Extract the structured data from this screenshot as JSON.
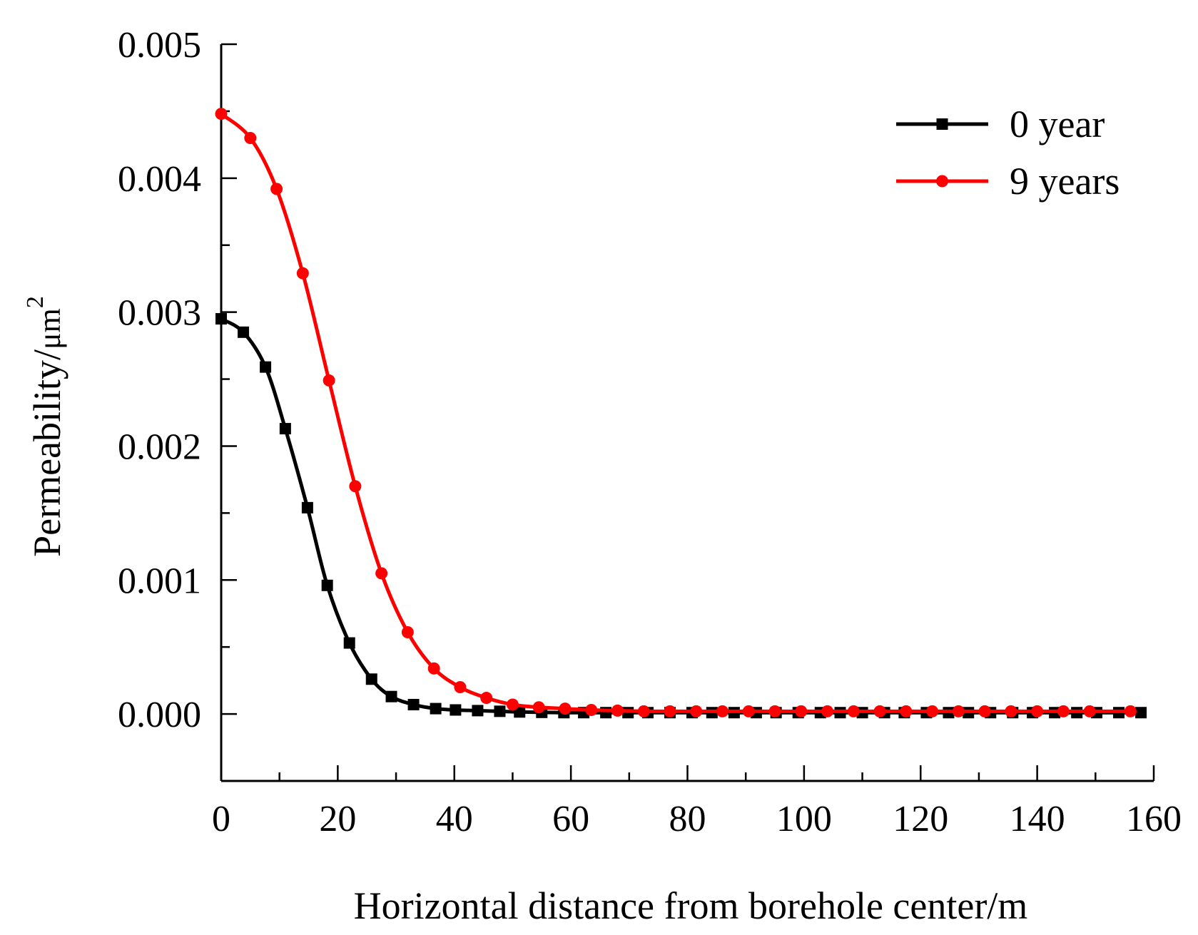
{
  "chart_data": {
    "type": "line",
    "title": "",
    "xlabel": "Horizontal distance from borehole center/m",
    "ylabel_main": "Permeability/",
    "ylabel_unit": "μm",
    "ylabel_sup": "2",
    "xlim": [
      0,
      160
    ],
    "ylim": [
      -0.0005,
      0.005
    ],
    "xticks": [
      0,
      20,
      40,
      60,
      80,
      100,
      120,
      140,
      160
    ],
    "xtick_labels": [
      "0",
      "20",
      "40",
      "60",
      "80",
      "100",
      "120",
      "140",
      "160"
    ],
    "yticks": [
      0,
      0.001,
      0.002,
      0.003,
      0.004,
      0.005
    ],
    "ytick_labels": [
      "0.000",
      "0.001",
      "0.002",
      "0.003",
      "0.004",
      "0.005"
    ],
    "grid": false,
    "legend_position": "top-right",
    "series": [
      {
        "name": "0 year",
        "color": "#000000",
        "marker": "square",
        "x": [
          0,
          3.8,
          7.6,
          11,
          14.8,
          18.2,
          22,
          25.8,
          29.2,
          33,
          36.8,
          40.2,
          44,
          47.8,
          51.2,
          55,
          58.8,
          62.2,
          66,
          69.8,
          73.2,
          77,
          80.8,
          84.2,
          88,
          91.8,
          95.2,
          99,
          102.8,
          106.2,
          110,
          113.8,
          117.2,
          121,
          124.8,
          128.2,
          132,
          135.8,
          139.2,
          143,
          146.8,
          150.2,
          154,
          157.8
        ],
        "y": [
          0.00295,
          0.00285,
          0.00259,
          0.00213,
          0.00154,
          0.00096,
          0.00053,
          0.00026,
          0.00013,
          7e-05,
          4e-05,
          3e-05,
          2.5e-05,
          2e-05,
          1.5e-05,
          1.2e-05,
          1e-05,
          1e-05,
          1e-05,
          1e-05,
          1e-05,
          1e-05,
          1e-05,
          1e-05,
          1e-05,
          1e-05,
          1e-05,
          1e-05,
          1e-05,
          1e-05,
          1e-05,
          1e-05,
          1e-05,
          1e-05,
          1e-05,
          1e-05,
          1e-05,
          1e-05,
          1e-05,
          1e-05,
          1e-05,
          1e-05,
          1e-05,
          1e-05
        ]
      },
      {
        "name": "9 years",
        "color": "#ff0000",
        "marker": "circle",
        "x": [
          0,
          5,
          9.5,
          14,
          18.5,
          23,
          27.5,
          32,
          36.5,
          41,
          45.5,
          50,
          54.5,
          59,
          63.5,
          68,
          72.5,
          77,
          81.5,
          86,
          90.5,
          95,
          99.5,
          104,
          108.5,
          113,
          117.5,
          122,
          126.5,
          131,
          135.5,
          140,
          144.5,
          149,
          156
        ],
        "y": [
          0.00448,
          0.0043,
          0.00392,
          0.00329,
          0.00249,
          0.0017,
          0.00105,
          0.00061,
          0.00034,
          0.0002,
          0.00012,
          7e-05,
          5e-05,
          4e-05,
          3e-05,
          2.5e-05,
          2e-05,
          2e-05,
          2e-05,
          2e-05,
          2e-05,
          2e-05,
          2e-05,
          2e-05,
          2e-05,
          2e-05,
          2e-05,
          2e-05,
          2e-05,
          2e-05,
          2e-05,
          2e-05,
          2e-05,
          2e-05,
          2e-05
        ]
      }
    ]
  }
}
